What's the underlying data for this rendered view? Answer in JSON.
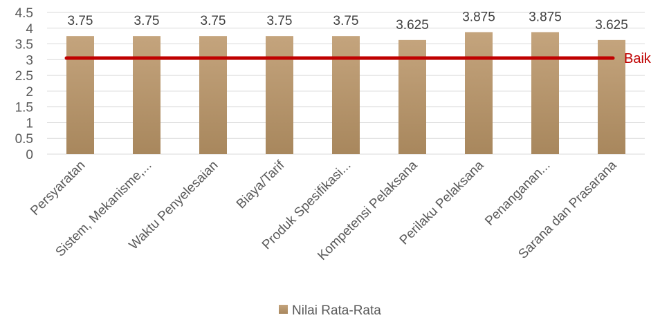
{
  "chart_data": {
    "type": "bar",
    "categories": [
      "Persyaratan",
      "Sistem, Mekanisme,...",
      "Waktu Penyelesaian",
      "Biaya/Tarif",
      "Produk Spesifikasi...",
      "Kompetensi Pelaksana",
      "Perilaku Pelaksana",
      "Penanganan...",
      "Sarana dan Prasarana"
    ],
    "series": [
      {
        "name": "Nilai Rata-Rata",
        "values": [
          3.75,
          3.75,
          3.75,
          3.75,
          3.75,
          3.625,
          3.875,
          3.875,
          3.625
        ],
        "data_labels": [
          "3.75",
          "3.75",
          "3.75",
          "3.75",
          "3.75",
          "3.625",
          "3.875",
          "3.875",
          "3.625"
        ],
        "color": "#b99468"
      }
    ],
    "reference_line": {
      "label": "Baik",
      "value": 3.05,
      "color": "#c00000"
    },
    "y_ticks": [
      "0",
      "0.5",
      "1",
      "1.5",
      "2",
      "2.5",
      "3",
      "3.5",
      "4",
      "4.5"
    ],
    "ylim": [
      0,
      4.5
    ],
    "grid": true,
    "legend_position": "bottom",
    "colors": {
      "bar_top": "#c4a47d",
      "bar_bottom": "#a8875d",
      "grid": "#d9d9d9",
      "axis_text": "#595959"
    }
  }
}
